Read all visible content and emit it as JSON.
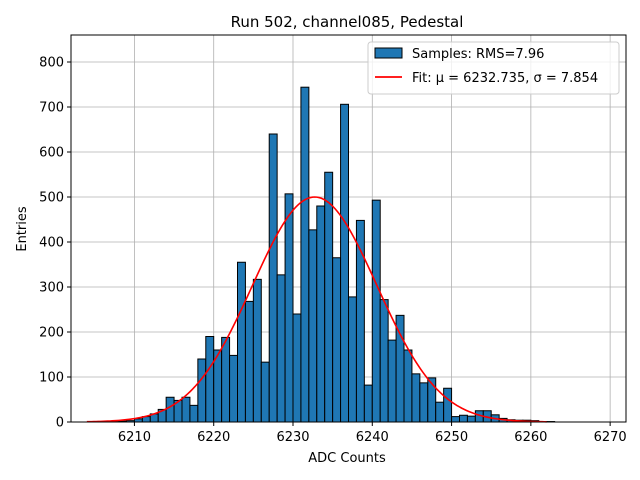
{
  "chart_data": {
    "type": "bar",
    "title": "Run 502, channel085, Pedestal",
    "xlabel": "ADC Counts",
    "ylabel": "Entries",
    "xlim": [
      6202,
      6272
    ],
    "ylim": [
      0,
      860
    ],
    "xticks": [
      6210,
      6220,
      6230,
      6240,
      6250,
      6260,
      6270
    ],
    "yticks": [
      0,
      100,
      200,
      300,
      400,
      500,
      600,
      700,
      800
    ],
    "grid": true,
    "legend_position": "top-right",
    "bin_width": 1,
    "bins": [
      6204,
      6205,
      6206,
      6207,
      6208,
      6209,
      6210,
      6211,
      6212,
      6213,
      6214,
      6215,
      6216,
      6217,
      6218,
      6219,
      6220,
      6221,
      6222,
      6223,
      6224,
      6225,
      6226,
      6227,
      6228,
      6229,
      6230,
      6231,
      6232,
      6233,
      6234,
      6235,
      6236,
      6237,
      6238,
      6239,
      6240,
      6241,
      6242,
      6243,
      6244,
      6245,
      6246,
      6247,
      6248,
      6249,
      6250,
      6251,
      6252,
      6253,
      6254,
      6255,
      6256,
      6257,
      6258,
      6259,
      6260,
      6261,
      6262
    ],
    "counts": [
      0,
      0,
      0,
      1,
      2,
      3,
      7,
      12,
      18,
      28,
      55,
      48,
      55,
      37,
      140,
      190,
      160,
      188,
      148,
      355,
      268,
      317,
      133,
      640,
      327,
      507,
      240,
      744,
      427,
      480,
      555,
      365,
      706,
      278,
      448,
      82,
      493,
      272,
      182,
      237,
      160,
      107,
      87,
      98,
      44,
      75,
      12,
      15,
      13,
      25,
      25,
      16,
      8,
      5,
      4,
      4,
      3,
      1,
      1
    ],
    "series": [
      {
        "name": "Samples: RMS=7.96",
        "type": "histogram",
        "color": "#1f77b4",
        "edgecolor": "#000000"
      },
      {
        "name": "Fit: μ = 6232.735, σ = 7.854",
        "type": "line",
        "color": "#ff0000",
        "mu": 6232.735,
        "sigma": 7.854,
        "amplitude": 500,
        "x_range": [
          6204,
          6262
        ]
      }
    ]
  }
}
